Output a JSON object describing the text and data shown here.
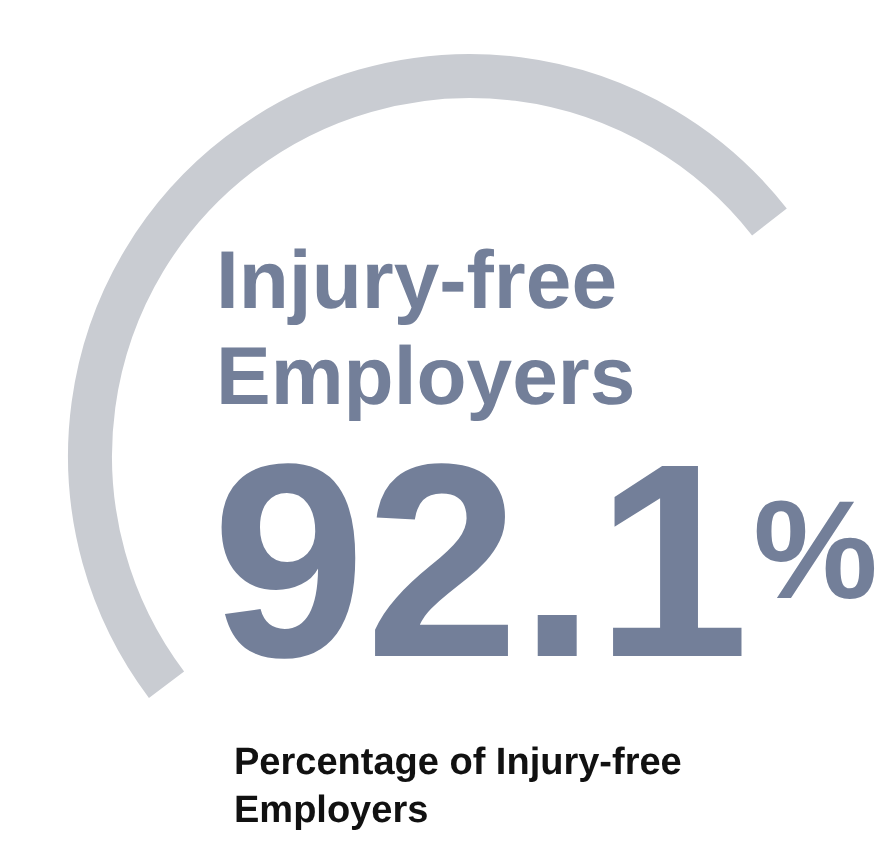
{
  "chart_data": {
    "type": "other",
    "title": "Injury-free Employers",
    "values": [
      92.1
    ],
    "value_labels": [
      "92.1$^{%}$"
    ],
    "color": "#737f99",
    "annotations": [
      "Percentage of Injury-free Employers"
    ]
  }
}
